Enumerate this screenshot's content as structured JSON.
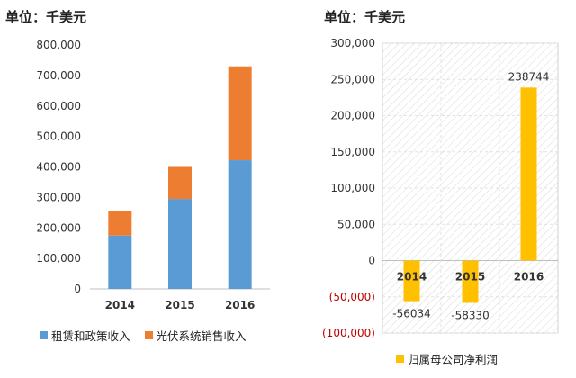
{
  "left": {
    "unit": "单位：千美元",
    "legend_colors": [
      "#5b9bd5",
      "#ed7d31"
    ]
  },
  "right": {
    "unit": "单位：千美元",
    "legend_label": "归属母公司净利润",
    "bar_color": "#ffc000",
    "neg_tick_color": "#c00000"
  },
  "chart_data": [
    {
      "type": "bar",
      "stacked": true,
      "categories": [
        "2014",
        "2015",
        "2016"
      ],
      "series": [
        {
          "name": "租赁和政策收入",
          "values": [
            175000,
            295000,
            422000
          ]
        },
        {
          "name": "光伏系统销售收入",
          "values": [
            80000,
            105000,
            308000
          ]
        }
      ],
      "ylim": [
        0,
        800000
      ],
      "yticks": [
        "0",
        "100,000",
        "200,000",
        "300,000",
        "400,000",
        "500,000",
        "600,000",
        "700,000",
        "800,000"
      ],
      "legend_position": "bottom",
      "grid": false
    },
    {
      "type": "bar",
      "categories": [
        "2014",
        "2015",
        "2016"
      ],
      "series": [
        {
          "name": "归属母公司净利润",
          "values": [
            -56034,
            -58330,
            238744
          ]
        }
      ],
      "data_labels": [
        "-56034",
        "-58330",
        "238744"
      ],
      "ylim": [
        -100000,
        300000
      ],
      "yticks": [
        "(100,000)",
        "(50,000)",
        "0",
        "50,000",
        "100,000",
        "150,000",
        "200,000",
        "250,000",
        "300,000"
      ],
      "ytick_values": [
        -100000,
        -50000,
        0,
        50000,
        100000,
        150000,
        200000,
        250000,
        300000
      ],
      "legend_position": "bottom",
      "grid": true
    }
  ]
}
